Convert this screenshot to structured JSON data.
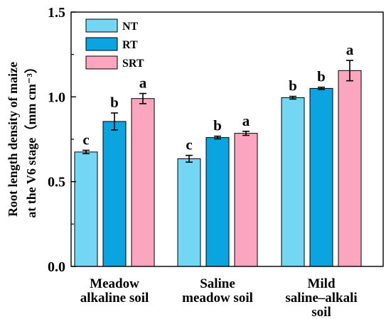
{
  "chart_data": {
    "type": "bar",
    "ylabel_lines": [
      "Root length density of maize",
      "at the V6 stage（mm cm⁻³）"
    ],
    "ylim": [
      0,
      1.5
    ],
    "yticks": [
      0.0,
      0.5,
      1.0,
      1.5
    ],
    "ytick_labels": [
      "0.0",
      "0.5",
      "1.0",
      "1.5"
    ],
    "legend_position": "top-left",
    "categories": [
      {
        "lines": [
          "Meadow",
          "alkaline soil"
        ]
      },
      {
        "lines": [
          "Saline",
          "meadow soil"
        ]
      },
      {
        "lines": [
          "Mild",
          "saline–alkali",
          "soil"
        ]
      }
    ],
    "series": [
      {
        "name": "NT",
        "color": "#73d6f2",
        "values": [
          0.675,
          0.635,
          0.995
        ],
        "errors": [
          0.01,
          0.02,
          0.008
        ],
        "labels": [
          "c",
          "c",
          "b"
        ]
      },
      {
        "name": "RT",
        "color": "#0aa5e0",
        "values": [
          0.855,
          0.76,
          1.05
        ],
        "errors": [
          0.05,
          0.008,
          0.007
        ],
        "labels": [
          "b",
          "b",
          "b"
        ]
      },
      {
        "name": "SRT",
        "color": "#fca5c0",
        "values": [
          0.99,
          0.785,
          1.155
        ],
        "errors": [
          0.03,
          0.012,
          0.06
        ],
        "labels": [
          "a",
          "a",
          "a"
        ]
      }
    ]
  }
}
